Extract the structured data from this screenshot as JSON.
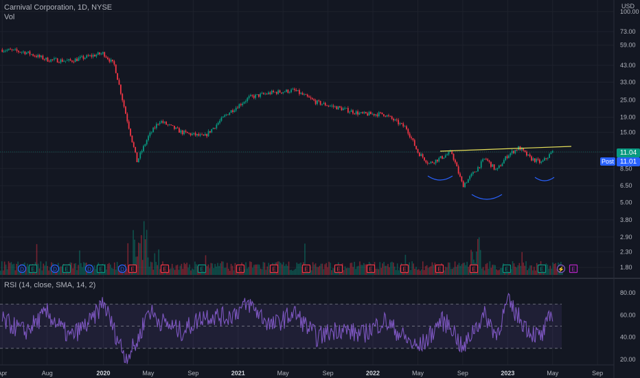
{
  "header": {
    "symbol_line": "Carnival Corporation, 1D, NYSE",
    "volume_label": "Vol",
    "currency": "USD",
    "rsi_label": "RSI (14, close, SMA, 14, 2)"
  },
  "price_axis": {
    "ticks": [
      "100.00",
      "73.00",
      "59.00",
      "43.00",
      "33.00",
      "25.00",
      "19.00",
      "15.00",
      "11.00",
      "8.50",
      "6.50",
      "5.00",
      "3.80",
      "2.90",
      "2.30",
      "1.80"
    ]
  },
  "rsi_axis": {
    "ticks": [
      "80.00",
      "60.00",
      "40.00",
      "20.00"
    ]
  },
  "time_axis": {
    "ticks": [
      "Apr",
      "Aug",
      "2020",
      "May",
      "Sep",
      "2021",
      "May",
      "Sep",
      "2022",
      "May",
      "Sep",
      "2023",
      "May",
      "Sep"
    ]
  },
  "last_price": {
    "close": "11.04",
    "post": "11.01",
    "post_label": "Post",
    "color": "#089981",
    "post_color": "#2962ff"
  },
  "colors": {
    "up": "#089981",
    "down": "#f23645",
    "rsi": "#7e57c2",
    "trend": "#e6e05a",
    "arc": "#2962ff"
  },
  "chart_data": {
    "type": "line",
    "title": "Carnival Corporation, 1D, NYSE",
    "price_scale": "log",
    "ylim": [
      1.6,
      110
    ],
    "x_range": [
      "2019-04",
      "2023-09"
    ],
    "series": [
      {
        "name": "Carnival Corporation",
        "x": [
          "2019-04",
          "2019-06",
          "2019-08",
          "2019-10",
          "2019-12",
          "2020-01",
          "2020-02",
          "2020-03",
          "2020-04",
          "2020-05",
          "2020-06",
          "2020-08",
          "2020-10",
          "2020-12",
          "2021-02",
          "2021-04",
          "2021-06",
          "2021-08",
          "2021-10",
          "2021-12",
          "2022-02",
          "2022-04",
          "2022-05",
          "2022-06",
          "2022-07",
          "2022-08",
          "2022-09",
          "2022-10",
          "2022-11",
          "2022-12",
          "2023-01",
          "2023-02",
          "2023-03",
          "2023-04",
          "2023-05"
        ],
        "values": [
          55,
          53,
          47,
          46,
          50,
          52,
          43,
          20,
          9.5,
          14,
          18,
          15,
          14,
          20,
          26,
          28,
          29,
          24,
          22,
          20,
          20,
          16,
          11,
          9.2,
          10.0,
          11.0,
          6.5,
          8.0,
          10.0,
          8.2,
          10.5,
          11.8,
          10.0,
          9.3,
          11.04
        ]
      },
      {
        "name": "RSI (14, close, SMA, 14, 2)",
        "x": [
          "2019-04",
          "2019-06",
          "2019-08",
          "2019-10",
          "2019-12",
          "2020-01",
          "2020-02",
          "2020-03",
          "2020-04",
          "2020-05",
          "2020-06",
          "2020-08",
          "2020-10",
          "2020-12",
          "2021-02",
          "2021-04",
          "2021-06",
          "2021-08",
          "2021-10",
          "2021-12",
          "2022-02",
          "2022-04",
          "2022-05",
          "2022-06",
          "2022-07",
          "2022-08",
          "2022-09",
          "2022-10",
          "2022-11",
          "2022-12",
          "2023-01",
          "2023-02",
          "2023-03",
          "2023-04",
          "2023-05"
        ],
        "values": [
          55,
          45,
          62,
          40,
          55,
          72,
          45,
          22,
          35,
          65,
          55,
          45,
          60,
          58,
          70,
          50,
          62,
          40,
          48,
          42,
          55,
          38,
          30,
          40,
          55,
          50,
          28,
          48,
          60,
          42,
          72,
          58,
          45,
          40,
          63
        ]
      }
    ],
    "rsi_ylim": [
      15,
      82
    ],
    "rsi_bands": {
      "upper": 70,
      "middle": 50,
      "lower": 30
    },
    "annotations": [
      "trendline",
      "inverse head and shoulders arcs"
    ]
  }
}
